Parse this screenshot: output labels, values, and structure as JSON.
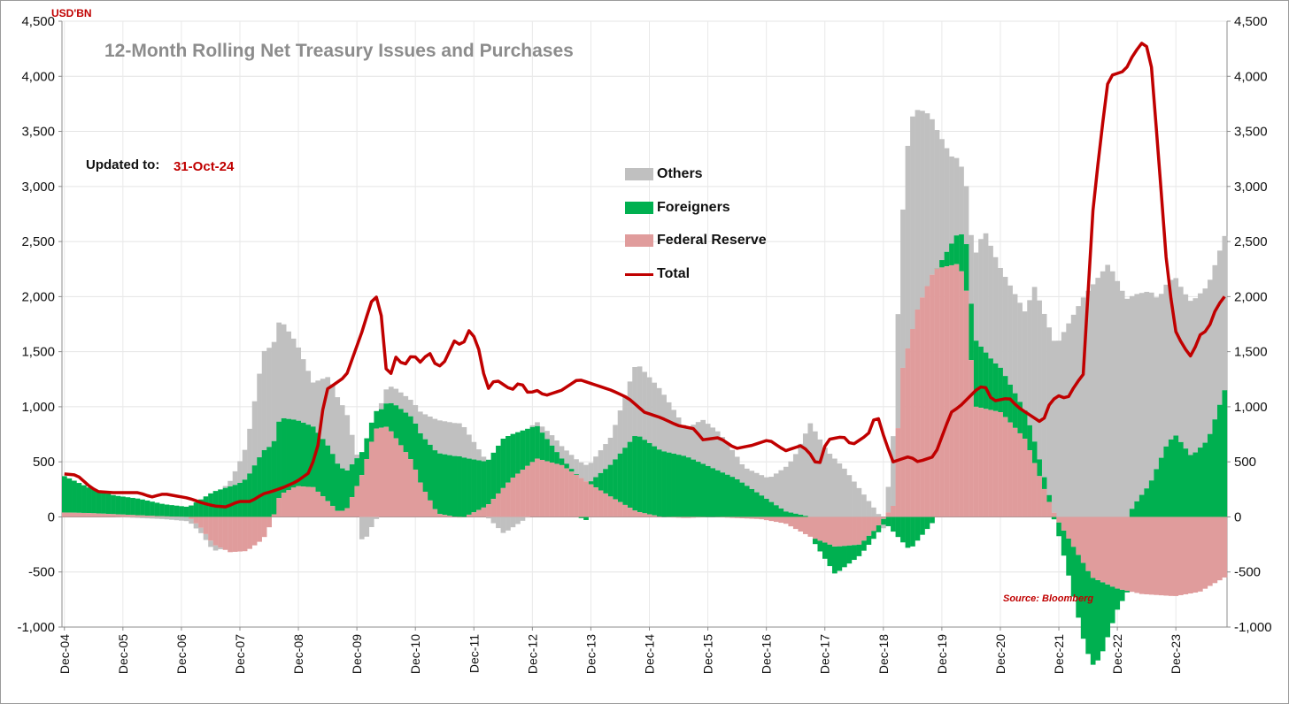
{
  "chart_data": {
    "type": "bar",
    "title": "12-Month Rolling Net Treasury Issues and Purchases",
    "unit": "USD'BN",
    "updated_label": "Updated to:",
    "updated_value": "31-Oct-24",
    "source": "Source: Bloomberg",
    "ylim": [
      -1000,
      4500
    ],
    "y_ticks": [
      4500,
      4000,
      3500,
      3000,
      2500,
      2000,
      1500,
      1000,
      500,
      0,
      -500,
      -1000
    ],
    "y_tick_labels": [
      "4,500",
      "4,000",
      "3,500",
      "3,000",
      "2,500",
      "2,000",
      "1,500",
      "1,000",
      "500",
      "0",
      "-500",
      "-1,000"
    ],
    "x_tick_labels": [
      "Dec-04",
      "Dec-05",
      "Dec-06",
      "Dec-07",
      "Dec-08",
      "Dec-09",
      "Dec-10",
      "Dec-11",
      "Dec-12",
      "Dec-13",
      "Dec-14",
      "Dec-15",
      "Dec-16",
      "Dec-17",
      "Dec-18",
      "Dec-19",
      "Dec-20",
      "Dec-21",
      "Dec-22",
      "Dec-23"
    ],
    "x_range": [
      "Dec-04",
      "Oct-24"
    ],
    "legend_position": "center-top",
    "series": [
      {
        "name": "Others",
        "type": "stacked-bar",
        "color": "#c0c0c0",
        "anchors": [
          [
            0,
            0
          ],
          [
            12,
            0
          ],
          [
            24,
            -20
          ],
          [
            30,
            -40
          ],
          [
            36,
            -60
          ],
          [
            40,
            50
          ],
          [
            44,
            300
          ],
          [
            48,
            900
          ],
          [
            52,
            900
          ],
          [
            56,
            700
          ],
          [
            60,
            400
          ],
          [
            64,
            650
          ],
          [
            68,
            550
          ],
          [
            72,
            -250
          ],
          [
            74,
            -100
          ],
          [
            78,
            150
          ],
          [
            84,
            150
          ],
          [
            90,
            300
          ],
          [
            96,
            300
          ],
          [
            102,
            0
          ],
          [
            106,
            -150
          ],
          [
            108,
            -100
          ],
          [
            112,
            0
          ],
          [
            118,
            100
          ],
          [
            126,
            150
          ],
          [
            132,
            250
          ],
          [
            138,
            650
          ],
          [
            144,
            550
          ],
          [
            150,
            250
          ],
          [
            154,
            400
          ],
          [
            158,
            350
          ],
          [
            164,
            150
          ],
          [
            170,
            200
          ],
          [
            176,
            500
          ],
          [
            180,
            850
          ],
          [
            184,
            600
          ],
          [
            188,
            450
          ],
          [
            192,
            250
          ],
          [
            198,
            -50
          ],
          [
            204,
            2000
          ],
          [
            208,
            1600
          ],
          [
            214,
            800
          ],
          [
            218,
            500
          ],
          [
            222,
            1100
          ],
          [
            226,
            900
          ],
          [
            232,
            900
          ],
          [
            234,
            1400
          ],
          [
            240,
            1600
          ],
          [
            246,
            2000
          ],
          [
            252,
            2300
          ],
          [
            256,
            2000
          ],
          [
            262,
            1750
          ],
          [
            264,
            1500
          ],
          [
            270,
            1400
          ]
        ]
      },
      {
        "name": "Foreigners",
        "type": "stacked-bar",
        "color": "#00b050",
        "anchors": [
          [
            0,
            330
          ],
          [
            6,
            230
          ],
          [
            12,
            170
          ],
          [
            18,
            150
          ],
          [
            24,
            110
          ],
          [
            30,
            90
          ],
          [
            36,
            230
          ],
          [
            42,
            300
          ],
          [
            44,
            350
          ],
          [
            48,
            600
          ],
          [
            52,
            700
          ],
          [
            56,
            600
          ],
          [
            60,
            550
          ],
          [
            64,
            500
          ],
          [
            72,
            200
          ],
          [
            76,
            150
          ],
          [
            80,
            300
          ],
          [
            84,
            400
          ],
          [
            90,
            550
          ],
          [
            96,
            550
          ],
          [
            102,
            400
          ],
          [
            106,
            450
          ],
          [
            108,
            400
          ],
          [
            114,
            300
          ],
          [
            120,
            60
          ],
          [
            126,
            -30
          ],
          [
            132,
            300
          ],
          [
            138,
            700
          ],
          [
            144,
            600
          ],
          [
            150,
            550
          ],
          [
            156,
            450
          ],
          [
            162,
            350
          ],
          [
            168,
            200
          ],
          [
            174,
            50
          ],
          [
            180,
            0
          ],
          [
            186,
            -250
          ],
          [
            192,
            -100
          ],
          [
            198,
            -50
          ],
          [
            204,
            -300
          ],
          [
            210,
            -30
          ],
          [
            216,
            300
          ],
          [
            220,
            600
          ],
          [
            224,
            450
          ],
          [
            228,
            350
          ],
          [
            234,
            200
          ],
          [
            238,
            50
          ],
          [
            242,
            -300
          ],
          [
            246,
            -700
          ],
          [
            248,
            -800
          ],
          [
            250,
            -700
          ],
          [
            254,
            -200
          ],
          [
            258,
            100
          ],
          [
            262,
            300
          ],
          [
            266,
            650
          ],
          [
            268,
            750
          ],
          [
            272,
            550
          ],
          [
            276,
            700
          ],
          [
            280,
            1150
          ]
        ]
      },
      {
        "name": "Federal Reserve",
        "type": "stacked-bar",
        "color": "#e09c9c",
        "anchors": [
          [
            0,
            40
          ],
          [
            6,
            35
          ],
          [
            12,
            25
          ],
          [
            18,
            15
          ],
          [
            24,
            5
          ],
          [
            30,
            0
          ],
          [
            33,
            -100
          ],
          [
            36,
            -250
          ],
          [
            40,
            -320
          ],
          [
            44,
            -310
          ],
          [
            48,
            -200
          ],
          [
            50,
            -50
          ],
          [
            52,
            200
          ],
          [
            56,
            280
          ],
          [
            60,
            270
          ],
          [
            62,
            200
          ],
          [
            66,
            50
          ],
          [
            68,
            60
          ],
          [
            72,
            400
          ],
          [
            75,
            800
          ],
          [
            78,
            820
          ],
          [
            84,
            500
          ],
          [
            86,
            300
          ],
          [
            90,
            30
          ],
          [
            96,
            -10
          ],
          [
            102,
            100
          ],
          [
            108,
            350
          ],
          [
            114,
            530
          ],
          [
            120,
            470
          ],
          [
            126,
            320
          ],
          [
            132,
            180
          ],
          [
            138,
            50
          ],
          [
            144,
            0
          ],
          [
            150,
            -10
          ],
          [
            156,
            0
          ],
          [
            162,
            -10
          ],
          [
            168,
            -20
          ],
          [
            174,
            -60
          ],
          [
            180,
            -180
          ],
          [
            186,
            -270
          ],
          [
            192,
            -250
          ],
          [
            196,
            -100
          ],
          [
            200,
            100
          ],
          [
            202,
            1300
          ],
          [
            206,
            1900
          ],
          [
            210,
            2250
          ],
          [
            216,
            2300
          ],
          [
            218,
            2000
          ],
          [
            219,
            1300
          ],
          [
            220,
            1000
          ],
          [
            226,
            950
          ],
          [
            232,
            700
          ],
          [
            238,
            100
          ],
          [
            240,
            -50
          ],
          [
            244,
            -300
          ],
          [
            248,
            -550
          ],
          [
            254,
            -650
          ],
          [
            260,
            -700
          ],
          [
            268,
            -720
          ],
          [
            274,
            -680
          ],
          [
            280,
            -550
          ]
        ]
      },
      {
        "name": "Total",
        "type": "line",
        "color": "#c00000",
        "anchors": [
          [
            0,
            390
          ],
          [
            3,
            380
          ],
          [
            6,
            280
          ],
          [
            8,
            230
          ],
          [
            12,
            220
          ],
          [
            18,
            220
          ],
          [
            21,
            180
          ],
          [
            24,
            210
          ],
          [
            30,
            170
          ],
          [
            33,
            130
          ],
          [
            36,
            100
          ],
          [
            39,
            90
          ],
          [
            42,
            140
          ],
          [
            45,
            140
          ],
          [
            48,
            210
          ],
          [
            50,
            230
          ],
          [
            53,
            270
          ],
          [
            56,
            320
          ],
          [
            59,
            400
          ],
          [
            61,
            600
          ],
          [
            63,
            1150
          ],
          [
            65,
            1200
          ],
          [
            68,
            1280
          ],
          [
            72,
            1700
          ],
          [
            74,
            1950
          ],
          [
            76,
            2020
          ],
          [
            78,
            1200
          ],
          [
            80,
            1450
          ],
          [
            82,
            1370
          ],
          [
            84,
            1480
          ],
          [
            86,
            1400
          ],
          [
            88,
            1500
          ],
          [
            90,
            1350
          ],
          [
            92,
            1420
          ],
          [
            94,
            1600
          ],
          [
            96,
            1550
          ],
          [
            98,
            1720
          ],
          [
            100,
            1520
          ],
          [
            102,
            1150
          ],
          [
            104,
            1250
          ],
          [
            108,
            1150
          ],
          [
            110,
            1230
          ],
          [
            112,
            1120
          ],
          [
            114,
            1150
          ],
          [
            116,
            1100
          ],
          [
            120,
            1150
          ],
          [
            124,
            1250
          ],
          [
            128,
            1200
          ],
          [
            132,
            1150
          ],
          [
            136,
            1080
          ],
          [
            140,
            950
          ],
          [
            144,
            900
          ],
          [
            148,
            830
          ],
          [
            152,
            800
          ],
          [
            154,
            700
          ],
          [
            158,
            720
          ],
          [
            162,
            620
          ],
          [
            166,
            650
          ],
          [
            170,
            700
          ],
          [
            174,
            600
          ],
          [
            178,
            650
          ],
          [
            180,
            570
          ],
          [
            182,
            450
          ],
          [
            184,
            700
          ],
          [
            188,
            730
          ],
          [
            190,
            650
          ],
          [
            194,
            750
          ],
          [
            196,
            950
          ],
          [
            198,
            700
          ],
          [
            200,
            500
          ],
          [
            204,
            550
          ],
          [
            206,
            500
          ],
          [
            210,
            550
          ],
          [
            214,
            950
          ],
          [
            216,
            1000
          ],
          [
            220,
            1150
          ],
          [
            222,
            1200
          ],
          [
            224,
            1050
          ],
          [
            228,
            1080
          ],
          [
            230,
            1000
          ],
          [
            232,
            950
          ],
          [
            236,
            850
          ],
          [
            238,
            1050
          ],
          [
            240,
            1100
          ],
          [
            242,
            1070
          ],
          [
            244,
            1200
          ],
          [
            246,
            1300
          ],
          [
            248,
            2700
          ],
          [
            250,
            3400
          ],
          [
            252,
            4000
          ],
          [
            256,
            4050
          ],
          [
            258,
            4200
          ],
          [
            260,
            4300
          ],
          [
            262,
            4250
          ],
          [
            264,
            3300
          ],
          [
            266,
            2300
          ],
          [
            268,
            1700
          ],
          [
            270,
            1550
          ],
          [
            272,
            1450
          ],
          [
            274,
            1650
          ],
          [
            276,
            1700
          ],
          [
            278,
            1900
          ],
          [
            280,
            2000
          ]
        ]
      }
    ]
  }
}
